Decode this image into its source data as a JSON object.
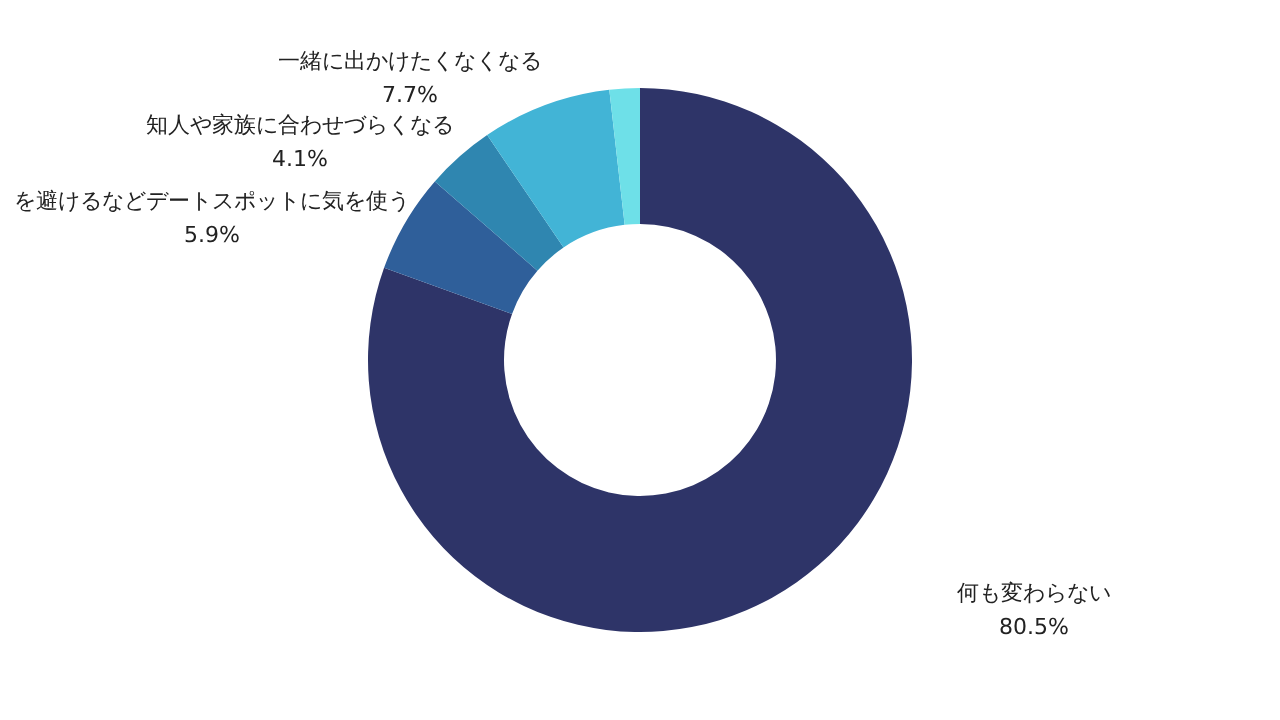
{
  "chart_data": {
    "type": "donut",
    "categories": [
      "何も変わらない",
      "を避けるなどデートスポットに気を使う",
      "知人や家族に合わせづらくなる",
      "一緒に出かけたくなくなる",
      null
    ],
    "values": [
      80.5,
      5.9,
      4.1,
      7.7,
      1.8
    ],
    "colors": [
      "#2e3468",
      "#2f5f9a",
      "#2f86b0",
      "#42b4d6",
      "#6ee0e8"
    ],
    "value_labels": [
      "80.5%",
      "5.9%",
      "4.1%",
      "7.7%",
      null
    ]
  }
}
